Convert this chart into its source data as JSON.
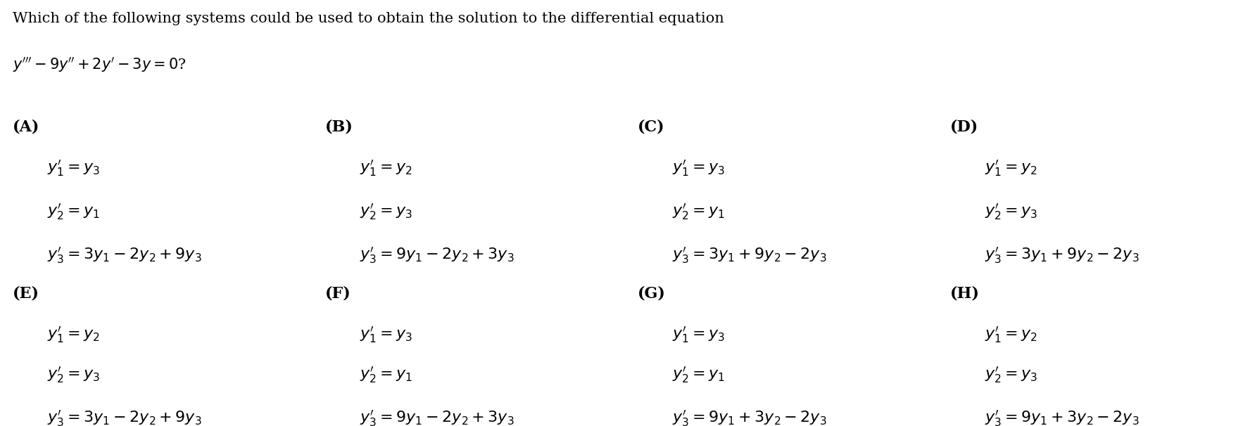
{
  "bg_color": "#ffffff",
  "title_line1": "Which of the following systems could be used to obtain the solution to the differential equation",
  "title_line2": "$y''' - 9y'' + 2y' - 3y = 0$?",
  "options": [
    {
      "label": "(A)",
      "lines": [
        "$y_1' = y_3$",
        "$y_2' = y_1$",
        "$y_3' = 3y_1 - 2y_2 + 9y_3$"
      ]
    },
    {
      "label": "(B)",
      "lines": [
        "$y_1' = y_2$",
        "$y_2' = y_3$",
        "$y_3' = 9y_1 - 2y_2 + 3y_3$"
      ]
    },
    {
      "label": "(C)",
      "lines": [
        "$y_1' = y_3$",
        "$y_2' = y_1$",
        "$y_3' = 3y_1 + 9y_2 - 2y_3$"
      ]
    },
    {
      "label": "(D)",
      "lines": [
        "$y_1' = y_2$",
        "$y_2' = y_3$",
        "$y_3' = 3y_1 + 9y_2 - 2y_3$"
      ]
    },
    {
      "label": "(E)",
      "lines": [
        "$y_1' = y_2$",
        "$y_2' = y_3$",
        "$y_3' = 3y_1 - 2y_2 + 9y_3$"
      ]
    },
    {
      "label": "(F)",
      "lines": [
        "$y_1' = y_3$",
        "$y_2' = y_1$",
        "$y_3' = 9y_1 - 2y_2 + 3y_3$"
      ]
    },
    {
      "label": "(G)",
      "lines": [
        "$y_1' = y_3$",
        "$y_2' = y_1$",
        "$y_3' = 9y_1 + 3y_2 - 2y_3$"
      ]
    },
    {
      "label": "(H)",
      "lines": [
        "$y_1' = y_2$",
        "$y_2' = y_3$",
        "$y_3' = 9y_1 + 3y_2 - 2y_3$"
      ]
    }
  ],
  "label_fontsize": 16,
  "equation_fontsize": 16,
  "header_fontsize": 15
}
